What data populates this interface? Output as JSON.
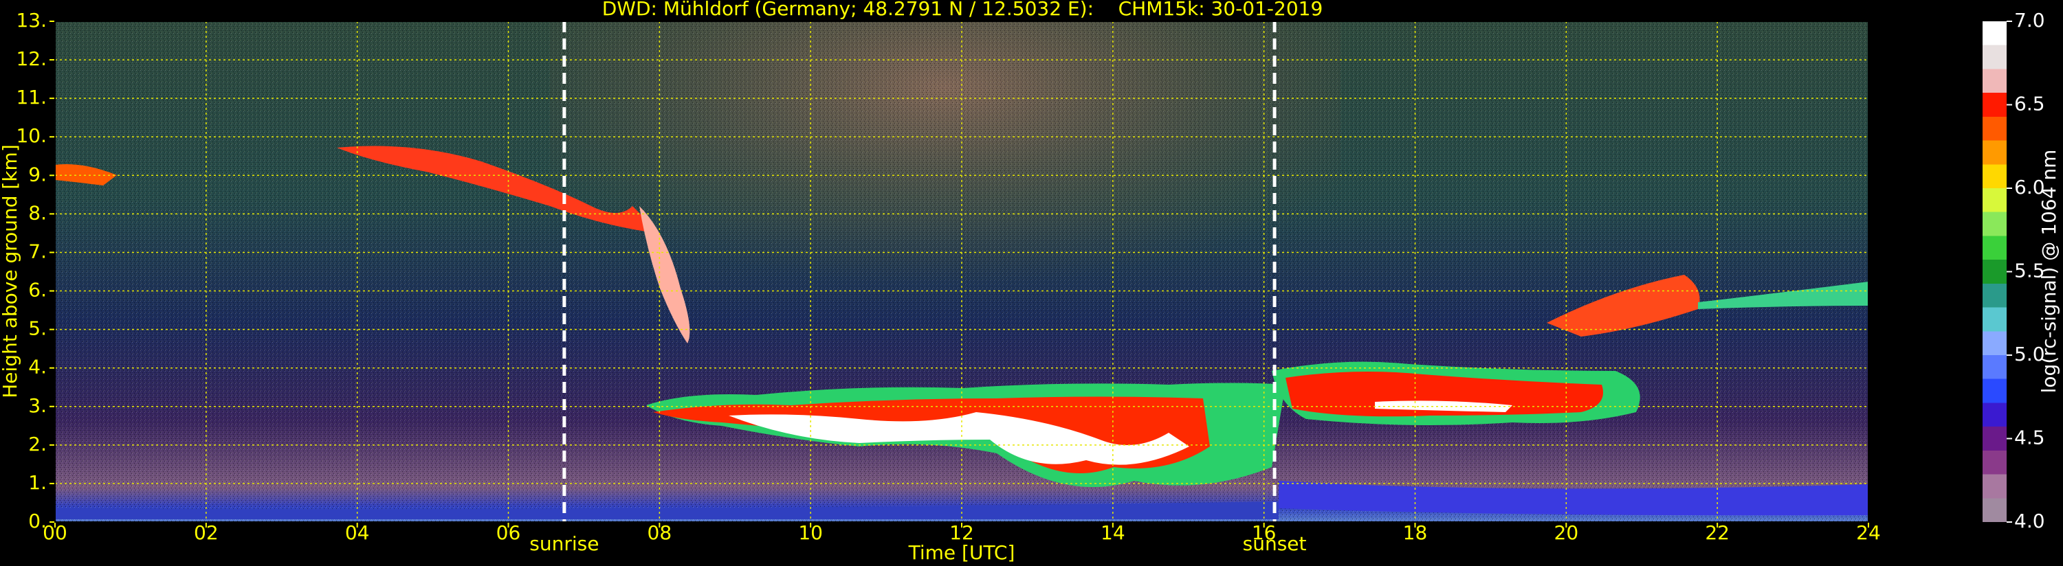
{
  "chart_data": {
    "type": "heatmap",
    "title": "DWD: Mühldorf (Germany; 48.2791 N / 12.5032 E):    CHM15k: 30-01-2019",
    "x_label": "Time [UTC]",
    "y_label": "Height above ground [km]",
    "colorbar_label": "log(rc-signal) @ 1064 nm",
    "xlim": [
      0,
      24
    ],
    "xticks": [
      {
        "value": 0,
        "label": "00"
      },
      {
        "value": 2,
        "label": "02"
      },
      {
        "value": 4,
        "label": "04"
      },
      {
        "value": 6,
        "label": "06"
      },
      {
        "value": 8,
        "label": "08"
      },
      10,
      12,
      14,
      16,
      18,
      20,
      22,
      24
    ],
    "ylim": [
      0,
      13
    ],
    "yticks": [
      {
        "value": 0,
        "label": "0."
      },
      {
        "value": 1,
        "label": "1."
      },
      {
        "value": 2,
        "label": "2."
      },
      {
        "value": 3,
        "label": "3."
      },
      {
        "value": 4,
        "label": "4."
      },
      {
        "value": 5,
        "label": "5."
      },
      {
        "value": 6,
        "label": "6."
      },
      {
        "value": 7,
        "label": "7."
      },
      {
        "value": 8,
        "label": "8."
      },
      {
        "value": 9,
        "label": "9."
      },
      {
        "value": 10,
        "label": "10."
      },
      {
        "value": 11,
        "label": "11."
      },
      {
        "value": 12,
        "label": "12."
      },
      {
        "value": 13,
        "label": "13."
      }
    ],
    "clim": [
      4,
      7
    ],
    "cticks": [
      {
        "value": 4,
        "label": "4.0"
      },
      4.5,
      {
        "value": 5,
        "label": "5.0"
      },
      5.5,
      {
        "value": 6,
        "label": "6.0"
      },
      6.5,
      {
        "value": 7,
        "label": "7.0"
      }
    ],
    "colormap": [
      "#a08aa0",
      "#a878a0",
      "#8a3a8a",
      "#6a1a8a",
      "#3a1ad0",
      "#2a4aff",
      "#5a7aff",
      "#8aaaff",
      "#5ac8d0",
      "#2a9a8a",
      "#1a9a2a",
      "#3ad03a",
      "#8ae85a",
      "#d8f83a",
      "#ffd800",
      "#ff9a00",
      "#ff5a00",
      "#ff1a00",
      "#f0b8b8",
      "#e8e0e0",
      "#ffffff"
    ],
    "grid": true,
    "annotations": [
      {
        "text": "sunrise",
        "x": 6.74
      },
      {
        "text": "sunset",
        "x": 16.14
      }
    ]
  }
}
